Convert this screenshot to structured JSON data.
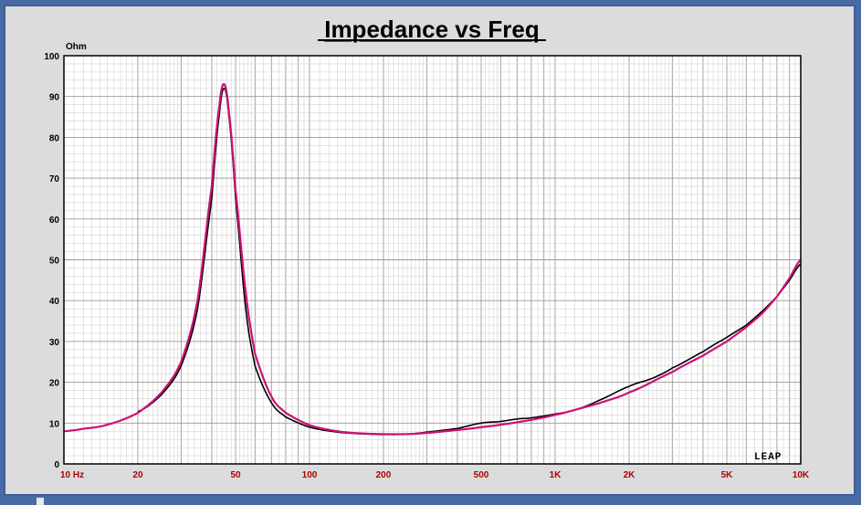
{
  "chart_data": {
    "type": "line",
    "title": "Impedance vs Freq",
    "ylabel": "Ohm",
    "xscale": "log",
    "xlim": [
      10,
      10000
    ],
    "ylim": [
      0,
      100
    ],
    "grid": true,
    "yticks": [
      "0",
      "10",
      "20",
      "30",
      "40",
      "50",
      "60",
      "70",
      "80",
      "90",
      "100"
    ],
    "xticks": [
      {
        "value": 10,
        "label": "10 Hz"
      },
      {
        "value": 20,
        "label": "20"
      },
      {
        "value": 50,
        "label": "50"
      },
      {
        "value": 100,
        "label": "100"
      },
      {
        "value": 200,
        "label": "200"
      },
      {
        "value": 500,
        "label": "500"
      },
      {
        "value": 1000,
        "label": "1K"
      },
      {
        "value": 2000,
        "label": "2K"
      },
      {
        "value": 5000,
        "label": "5K"
      },
      {
        "value": 10000,
        "label": "10K"
      }
    ],
    "logo": "LEAP",
    "series": [
      {
        "color": "#000000",
        "points": [
          [
            20,
            12.8
          ],
          [
            25,
            17
          ],
          [
            30,
            24
          ],
          [
            35,
            38
          ],
          [
            40,
            65
          ],
          [
            43,
            86
          ],
          [
            45,
            92
          ],
          [
            47,
            85
          ],
          [
            50,
            65
          ],
          [
            55,
            38
          ],
          [
            60,
            24
          ],
          [
            70,
            15
          ],
          [
            80,
            11.5
          ],
          [
            100,
            9
          ],
          [
            130,
            7.8
          ],
          [
            160,
            7.4
          ],
          [
            200,
            7.2
          ],
          [
            250,
            7.3
          ],
          [
            300,
            7.8
          ],
          [
            400,
            8.7
          ],
          [
            500,
            10
          ],
          [
            600,
            10.4
          ],
          [
            700,
            11
          ],
          [
            800,
            11.3
          ],
          [
            1000,
            12.2
          ],
          [
            1200,
            13.2
          ],
          [
            1500,
            15.5
          ],
          [
            2000,
            19
          ],
          [
            2500,
            21
          ],
          [
            3000,
            23.5
          ],
          [
            4000,
            27.5
          ],
          [
            5000,
            31
          ],
          [
            6000,
            34
          ],
          [
            7000,
            37.5
          ],
          [
            8000,
            41
          ],
          [
            9000,
            45
          ],
          [
            10000,
            49
          ]
        ]
      },
      {
        "color": "#cc1177",
        "points": [
          [
            10,
            8
          ],
          [
            12,
            8.6
          ],
          [
            15,
            9.6
          ],
          [
            20,
            12.5
          ],
          [
            25,
            17.5
          ],
          [
            30,
            25
          ],
          [
            35,
            40
          ],
          [
            40,
            68
          ],
          [
            43,
            88
          ],
          [
            45,
            93
          ],
          [
            47,
            86
          ],
          [
            50,
            67
          ],
          [
            55,
            42
          ],
          [
            60,
            27
          ],
          [
            70,
            16.5
          ],
          [
            80,
            12.5
          ],
          [
            100,
            9.5
          ],
          [
            130,
            8
          ],
          [
            160,
            7.5
          ],
          [
            200,
            7.3
          ],
          [
            250,
            7.3
          ],
          [
            300,
            7.6
          ],
          [
            400,
            8.3
          ],
          [
            500,
            9
          ],
          [
            700,
            10.2
          ],
          [
            1000,
            12
          ],
          [
            1500,
            14.8
          ],
          [
            2000,
            17.5
          ],
          [
            3000,
            22.5
          ],
          [
            4000,
            26.5
          ],
          [
            5000,
            30
          ],
          [
            6000,
            33.5
          ],
          [
            7000,
            37
          ],
          [
            8000,
            41
          ],
          [
            9000,
            45.5
          ],
          [
            10000,
            50
          ]
        ]
      }
    ]
  }
}
